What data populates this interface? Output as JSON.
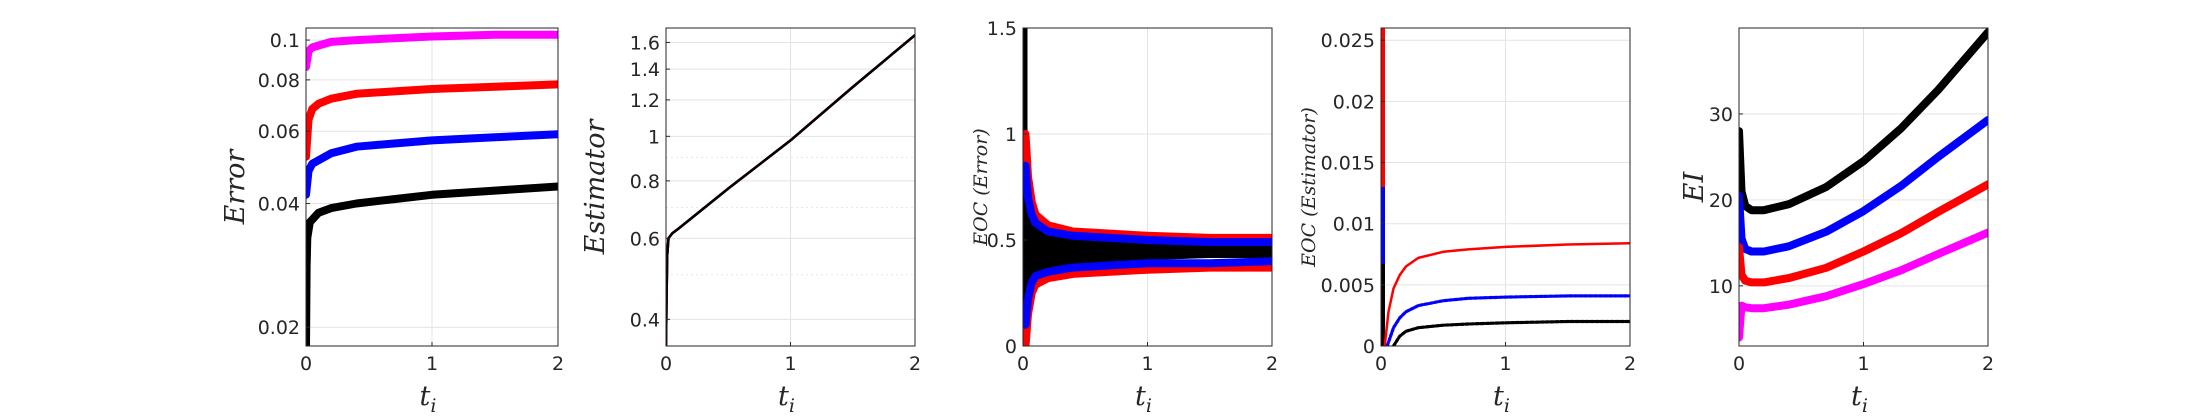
{
  "chart_data": [
    {
      "type": "line",
      "xlabel": "t",
      "xlabel_sub": "i",
      "ylabel": "Error",
      "yscale": "log",
      "xlim": [
        0,
        2
      ],
      "ylim": [
        0.018,
        0.107
      ],
      "xticks": [
        0,
        1,
        2
      ],
      "yticks": [
        0.02,
        0.04,
        0.06,
        0.08,
        0.1
      ],
      "ytick_labels": [
        "0.02",
        "0.04",
        "0.06",
        "0.08",
        "0.1"
      ],
      "grid": true,
      "series": [
        {
          "color": "#ff00ff",
          "width": "thick",
          "x": [
            0,
            0.02,
            0.05,
            0.1,
            0.2,
            0.4,
            0.7,
            1.0,
            1.5,
            2.0
          ],
          "y": [
            0.086,
            0.094,
            0.096,
            0.097,
            0.099,
            0.1,
            0.101,
            0.102,
            0.103,
            0.103
          ]
        },
        {
          "color": "#ff0000",
          "width": "thick",
          "x": [
            0,
            0.02,
            0.05,
            0.1,
            0.2,
            0.4,
            0.7,
            1.0,
            1.5,
            2.0
          ],
          "y": [
            0.052,
            0.064,
            0.068,
            0.07,
            0.072,
            0.074,
            0.075,
            0.076,
            0.077,
            0.078
          ]
        },
        {
          "color": "#0000ff",
          "width": "thick",
          "x": [
            0,
            0.02,
            0.05,
            0.1,
            0.2,
            0.4,
            0.7,
            1.0,
            1.5,
            2.0
          ],
          "y": [
            0.042,
            0.048,
            0.05,
            0.051,
            0.053,
            0.055,
            0.056,
            0.057,
            0.058,
            0.059
          ]
        },
        {
          "color": "#000000",
          "width": "thick",
          "x": [
            0,
            0.005,
            0.01,
            0.03,
            0.1,
            0.2,
            0.4,
            0.7,
            1.0,
            1.5,
            2.0
          ],
          "y": [
            0.018,
            0.028,
            0.033,
            0.036,
            0.038,
            0.039,
            0.04,
            0.041,
            0.042,
            0.043,
            0.044
          ]
        }
      ]
    },
    {
      "type": "line",
      "xlabel": "t",
      "xlabel_sub": "i",
      "ylabel": "Estimator",
      "yscale": "log",
      "xlim": [
        0,
        2
      ],
      "ylim": [
        0.35,
        1.72
      ],
      "xticks": [
        0,
        1,
        2
      ],
      "yticks": [
        0.4,
        0.6,
        0.8,
        1,
        1.2,
        1.4,
        1.6
      ],
      "ytick_labels": [
        "0.4",
        "0.6",
        "0.8",
        "1",
        "1.2",
        "1.4",
        "1.6"
      ],
      "minor_yticks": [
        0.5,
        0.7,
        0.9
      ],
      "grid": true,
      "series": [
        {
          "color": "#0000ff",
          "width": "thin",
          "x": [
            0,
            0.005,
            0.01,
            0.02,
            0.05,
            0.1,
            0.5,
            1.0,
            1.5,
            2.0
          ],
          "y": [
            0.35,
            0.45,
            0.55,
            0.6,
            0.615,
            0.63,
            0.77,
            0.98,
            1.28,
            1.66
          ]
        },
        {
          "color": "#ff0000",
          "width": "thin",
          "x": [
            0,
            0.005,
            0.01,
            0.02,
            0.05,
            0.1,
            0.5,
            1.0,
            1.5,
            2.0
          ],
          "y": [
            0.35,
            0.45,
            0.55,
            0.6,
            0.615,
            0.63,
            0.77,
            0.98,
            1.28,
            1.66
          ]
        },
        {
          "color": "#000000",
          "width": "thin",
          "x": [
            0,
            0.005,
            0.01,
            0.02,
            0.05,
            0.1,
            0.5,
            1.0,
            1.5,
            2.0
          ],
          "y": [
            0.35,
            0.45,
            0.55,
            0.6,
            0.615,
            0.63,
            0.77,
            0.98,
            1.28,
            1.66
          ]
        }
      ]
    },
    {
      "type": "line",
      "xlabel": "t",
      "xlabel_sub": "i",
      "ylabel": "EOC (Error)",
      "ylabel_prefix": "EOC (",
      "ylabel_inner": "Error",
      "ylabel_suffix": ")",
      "xlim": [
        0,
        2
      ],
      "ylim": [
        0,
        1.5
      ],
      "xticks": [
        0,
        1,
        2
      ],
      "yticks": [
        0,
        0.5,
        1,
        1.5
      ],
      "ytick_labels": [
        "0",
        "0.5",
        "1",
        "1.5"
      ],
      "grid": true,
      "band": {
        "color": "#000000",
        "x": [
          0.02,
          0.05,
          0.1,
          0.2,
          0.4,
          0.7,
          1.0,
          1.5,
          2.0
        ],
        "upper": [
          0.75,
          0.65,
          0.6,
          0.56,
          0.53,
          0.51,
          0.5,
          0.49,
          0.49
        ],
        "lower": [
          0.25,
          0.32,
          0.35,
          0.37,
          0.39,
          0.4,
          0.41,
          0.42,
          0.42
        ]
      },
      "spike": {
        "color": "#000000",
        "x": 0.0,
        "ymin": 0,
        "ymax": 1.5
      },
      "series": [
        {
          "color": "#ff0000",
          "width": "thick",
          "x": [
            0.02,
            0.04,
            0.07,
            0.1,
            0.2,
            0.4,
            0.7,
            1.0,
            1.5,
            2.0
          ],
          "y": [
            1.0,
            0.8,
            0.68,
            0.62,
            0.57,
            0.54,
            0.53,
            0.52,
            0.51,
            0.51
          ]
        },
        {
          "color": "#ff0000",
          "width": "thick",
          "x": [
            0.02,
            0.04,
            0.07,
            0.1,
            0.2,
            0.4,
            0.7,
            1.0,
            1.5,
            2.0
          ],
          "y": [
            0.0,
            0.15,
            0.25,
            0.29,
            0.32,
            0.34,
            0.35,
            0.36,
            0.37,
            0.37
          ]
        },
        {
          "color": "#0000ff",
          "width": "thick",
          "x": [
            0.02,
            0.04,
            0.07,
            0.1,
            0.2,
            0.4,
            0.7,
            1.0,
            1.5,
            2.0
          ],
          "y": [
            0.85,
            0.7,
            0.62,
            0.58,
            0.54,
            0.52,
            0.51,
            0.5,
            0.49,
            0.49
          ]
        },
        {
          "color": "#0000ff",
          "width": "thick",
          "x": [
            0.02,
            0.04,
            0.07,
            0.1,
            0.2,
            0.4,
            0.7,
            1.0,
            1.5,
            2.0
          ],
          "y": [
            0.1,
            0.22,
            0.3,
            0.33,
            0.35,
            0.37,
            0.38,
            0.39,
            0.39,
            0.4
          ]
        }
      ]
    },
    {
      "type": "line",
      "xlabel": "t",
      "xlabel_sub": "i",
      "ylabel": "EOC (Estimator)",
      "ylabel_prefix": "EOC (",
      "ylabel_inner": "Estimator",
      "ylabel_suffix": ")",
      "xlim": [
        0,
        2
      ],
      "ylim": [
        0,
        0.026
      ],
      "xticks": [
        0,
        1,
        2
      ],
      "yticks": [
        0,
        0.005,
        0.01,
        0.015,
        0.02,
        0.025
      ],
      "ytick_labels": [
        "0",
        "0.005",
        "0.01",
        "0.015",
        "0.02",
        "0.025"
      ],
      "grid": true,
      "spikes": [
        {
          "color": "#ff0000",
          "x": 0.0,
          "ymin": 0.013,
          "ymax": 0.026
        },
        {
          "color": "#0000ff",
          "x": 0.0,
          "ymin": 0.0067,
          "ymax": 0.013
        },
        {
          "color": "#000000",
          "x": 0.0,
          "ymin": 0.0,
          "ymax": 0.0067
        }
      ],
      "series": [
        {
          "color": "#ff0000",
          "width": "thin",
          "x": [
            0.03,
            0.06,
            0.1,
            0.15,
            0.2,
            0.3,
            0.5,
            0.7,
            1.0,
            1.5,
            2.0
          ],
          "y": [
            0.0,
            0.0028,
            0.0047,
            0.0058,
            0.0065,
            0.0072,
            0.0077,
            0.0079,
            0.0081,
            0.0083,
            0.0084
          ]
        },
        {
          "color": "#0000ff",
          "width": "thin",
          "style": "dotted",
          "x": [
            0.05,
            0.1,
            0.15,
            0.2,
            0.3,
            0.5,
            0.7,
            1.0,
            1.5,
            2.0
          ],
          "y": [
            0.0,
            0.0015,
            0.0023,
            0.0028,
            0.0033,
            0.0037,
            0.0039,
            0.004,
            0.0041,
            0.0041
          ]
        },
        {
          "color": "#000000",
          "width": "thin",
          "style": "dotted",
          "x": [
            0.1,
            0.15,
            0.2,
            0.3,
            0.5,
            0.7,
            1.0,
            1.5,
            2.0
          ],
          "y": [
            0.0,
            0.0008,
            0.0012,
            0.0015,
            0.0017,
            0.0018,
            0.0019,
            0.002,
            0.002
          ]
        }
      ]
    },
    {
      "type": "line",
      "xlabel": "t",
      "xlabel_sub": "i",
      "ylabel": "EI",
      "xlim": [
        0,
        2
      ],
      "ylim": [
        3,
        40
      ],
      "xticks": [
        0,
        1,
        2
      ],
      "yticks": [
        10,
        20,
        30
      ],
      "ytick_labels": [
        "10",
        "20",
        "30"
      ],
      "grid": true,
      "series": [
        {
          "color": "#000000",
          "width": "thick",
          "x": [
            0,
            0.02,
            0.05,
            0.1,
            0.2,
            0.4,
            0.7,
            1.0,
            1.3,
            1.6,
            2.0
          ],
          "y": [
            28,
            21,
            19.3,
            18.8,
            18.8,
            19.5,
            21.5,
            24.5,
            28.3,
            32.8,
            39.5
          ]
        },
        {
          "color": "#0000ff",
          "width": "thick",
          "x": [
            0,
            0.02,
            0.05,
            0.1,
            0.2,
            0.4,
            0.7,
            1.0,
            1.3,
            1.6,
            2.0
          ],
          "y": [
            20.5,
            15.5,
            14.3,
            14.0,
            14.0,
            14.6,
            16.3,
            18.7,
            21.6,
            25.0,
            29.3
          ]
        },
        {
          "color": "#ff0000",
          "width": "thick",
          "x": [
            0,
            0.02,
            0.05,
            0.1,
            0.2,
            0.4,
            0.7,
            1.0,
            1.3,
            1.6,
            2.0
          ],
          "y": [
            14.5,
            11.3,
            10.6,
            10.4,
            10.4,
            10.9,
            12.1,
            14.0,
            16.1,
            18.6,
            21.8
          ]
        },
        {
          "color": "#ff00ff",
          "width": "thick",
          "x": [
            0,
            0.02,
            0.05,
            0.1,
            0.2,
            0.4,
            0.7,
            1.0,
            1.3,
            1.6,
            2.0
          ],
          "y": [
            4.0,
            7.7,
            7.5,
            7.4,
            7.4,
            7.8,
            8.8,
            10.2,
            11.8,
            13.7,
            16.2
          ]
        }
      ]
    }
  ]
}
